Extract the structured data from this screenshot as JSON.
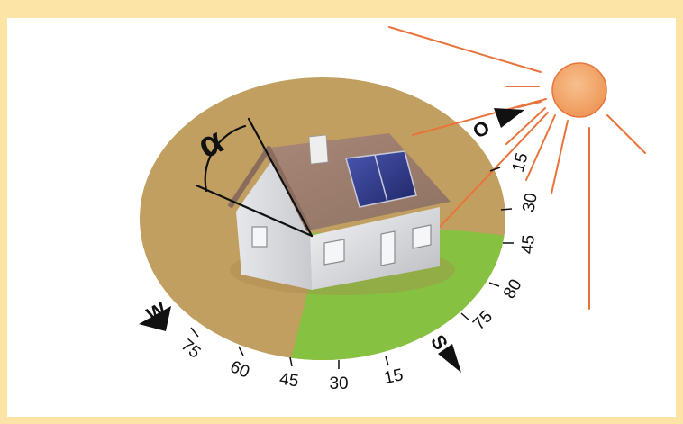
{
  "diagram": {
    "angle_symbol": "α",
    "compass": {
      "east": "O",
      "west": "W",
      "south": "S"
    },
    "scale_labels": [
      "15",
      "30",
      "45",
      "80",
      "75",
      "75",
      "60",
      "45",
      "30",
      "15"
    ]
  },
  "colors": {
    "frame": "#fce4a6",
    "background": "#ffffff",
    "ground": "#c19f60",
    "sun_segment": "#86c142",
    "sun_fill": "#f3a86c",
    "sun_rays": "#e8743c",
    "roof": "#9f8070",
    "wall": "#dcdde0",
    "panel": "#2d3680",
    "ink": "#111111"
  }
}
